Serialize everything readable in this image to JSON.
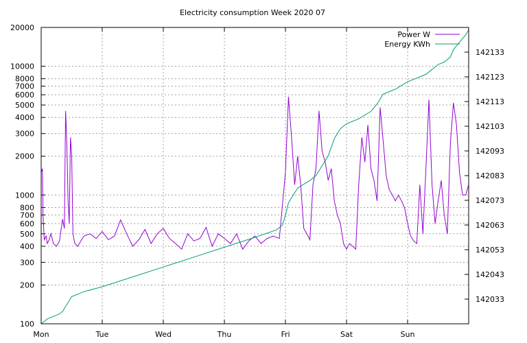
{
  "chart_data": {
    "type": "line",
    "title": "Electricity consumption Week 2020 07",
    "xlabel": "",
    "ylabel": "",
    "y2label": "",
    "grid": true,
    "legend_position": "top-right",
    "x_categories": [
      "Mon",
      "Tue",
      "Wed",
      "Thu",
      "Fri",
      "Sat",
      "Sun"
    ],
    "y_scale": "log",
    "ylim": [
      100,
      20000
    ],
    "y_ticks": [
      100,
      200,
      300,
      400,
      500,
      600,
      700,
      800,
      1000,
      2000,
      3000,
      4000,
      5000,
      6000,
      7000,
      8000,
      10000,
      20000
    ],
    "y2lim": [
      142023,
      142143
    ],
    "y2_ticks": [
      142033,
      142043,
      142053,
      142063,
      142073,
      142083,
      142093,
      142103,
      142113,
      142123,
      142133
    ],
    "series": [
      {
        "name": "Power W",
        "axis": "y",
        "color": "#9400d3",
        "points": [
          [
            0.0,
            1500
          ],
          [
            0.02,
            1600
          ],
          [
            0.03,
            700
          ],
          [
            0.05,
            450
          ],
          [
            0.08,
            480
          ],
          [
            0.1,
            420
          ],
          [
            0.13,
            450
          ],
          [
            0.16,
            500
          ],
          [
            0.2,
            420
          ],
          [
            0.25,
            400
          ],
          [
            0.3,
            440
          ],
          [
            0.35,
            650
          ],
          [
            0.38,
            550
          ],
          [
            0.4,
            4500
          ],
          [
            0.42,
            2500
          ],
          [
            0.44,
            900
          ],
          [
            0.46,
            600
          ],
          [
            0.48,
            2800
          ],
          [
            0.5,
            2000
          ],
          [
            0.52,
            500
          ],
          [
            0.55,
            420
          ],
          [
            0.6,
            400
          ],
          [
            0.65,
            440
          ],
          [
            0.7,
            480
          ],
          [
            0.8,
            500
          ],
          [
            0.9,
            460
          ],
          [
            1.0,
            520
          ],
          [
            1.1,
            450
          ],
          [
            1.2,
            480
          ],
          [
            1.3,
            640
          ],
          [
            1.4,
            500
          ],
          [
            1.5,
            400
          ],
          [
            1.6,
            450
          ],
          [
            1.7,
            540
          ],
          [
            1.8,
            420
          ],
          [
            1.9,
            500
          ],
          [
            2.0,
            550
          ],
          [
            2.1,
            460
          ],
          [
            2.2,
            420
          ],
          [
            2.3,
            380
          ],
          [
            2.4,
            500
          ],
          [
            2.5,
            440
          ],
          [
            2.6,
            460
          ],
          [
            2.7,
            560
          ],
          [
            2.8,
            400
          ],
          [
            2.9,
            500
          ],
          [
            3.0,
            460
          ],
          [
            3.1,
            420
          ],
          [
            3.2,
            500
          ],
          [
            3.3,
            380
          ],
          [
            3.4,
            440
          ],
          [
            3.5,
            480
          ],
          [
            3.6,
            420
          ],
          [
            3.7,
            460
          ],
          [
            3.8,
            480
          ],
          [
            3.9,
            460
          ],
          [
            4.0,
            1500
          ],
          [
            4.05,
            5800
          ],
          [
            4.1,
            2800
          ],
          [
            4.15,
            1200
          ],
          [
            4.2,
            2000
          ],
          [
            4.25,
            1200
          ],
          [
            4.3,
            550
          ],
          [
            4.35,
            500
          ],
          [
            4.4,
            450
          ],
          [
            4.45,
            1200
          ],
          [
            4.5,
            1600
          ],
          [
            4.55,
            4500
          ],
          [
            4.6,
            2200
          ],
          [
            4.65,
            1800
          ],
          [
            4.7,
            1300
          ],
          [
            4.75,
            1600
          ],
          [
            4.8,
            900
          ],
          [
            4.85,
            700
          ],
          [
            4.9,
            600
          ],
          [
            4.95,
            420
          ],
          [
            5.0,
            380
          ],
          [
            5.05,
            420
          ],
          [
            5.1,
            400
          ],
          [
            5.15,
            380
          ],
          [
            5.2,
            1200
          ],
          [
            5.25,
            2800
          ],
          [
            5.3,
            1800
          ],
          [
            5.35,
            3500
          ],
          [
            5.4,
            1600
          ],
          [
            5.45,
            1300
          ],
          [
            5.5,
            900
          ],
          [
            5.55,
            4800
          ],
          [
            5.6,
            2600
          ],
          [
            5.65,
            1400
          ],
          [
            5.7,
            1100
          ],
          [
            5.75,
            1000
          ],
          [
            5.8,
            900
          ],
          [
            5.85,
            1000
          ],
          [
            5.9,
            900
          ],
          [
            5.95,
            800
          ],
          [
            6.0,
            600
          ],
          [
            6.05,
            480
          ],
          [
            6.1,
            440
          ],
          [
            6.15,
            420
          ],
          [
            6.2,
            1200
          ],
          [
            6.25,
            500
          ],
          [
            6.3,
            1600
          ],
          [
            6.35,
            5500
          ],
          [
            6.4,
            1200
          ],
          [
            6.45,
            600
          ],
          [
            6.5,
            900
          ],
          [
            6.55,
            1300
          ],
          [
            6.6,
            700
          ],
          [
            6.65,
            500
          ],
          [
            6.7,
            2500
          ],
          [
            6.75,
            5200
          ],
          [
            6.8,
            3500
          ],
          [
            6.85,
            1500
          ],
          [
            6.9,
            1000
          ],
          [
            6.95,
            1000
          ],
          [
            7.0,
            1200
          ]
        ]
      },
      {
        "name": "Energy KWh",
        "axis": "y2",
        "color": "#009e73",
        "points": [
          [
            0.0,
            142023
          ],
          [
            0.1,
            142025
          ],
          [
            0.2,
            142026
          ],
          [
            0.3,
            142027
          ],
          [
            0.35,
            142028
          ],
          [
            0.4,
            142030
          ],
          [
            0.5,
            142034
          ],
          [
            0.7,
            142036
          ],
          [
            1.0,
            142038
          ],
          [
            1.5,
            142042
          ],
          [
            2.0,
            142046
          ],
          [
            2.5,
            142050
          ],
          [
            3.0,
            142054
          ],
          [
            3.5,
            142058
          ],
          [
            3.85,
            142061
          ],
          [
            3.95,
            142063
          ],
          [
            4.0,
            142067
          ],
          [
            4.05,
            142072
          ],
          [
            4.2,
            142078
          ],
          [
            4.4,
            142081
          ],
          [
            4.5,
            142083
          ],
          [
            4.6,
            142087
          ],
          [
            4.7,
            142091
          ],
          [
            4.8,
            142098
          ],
          [
            4.9,
            142102
          ],
          [
            5.0,
            142104
          ],
          [
            5.2,
            142106
          ],
          [
            5.4,
            142109
          ],
          [
            5.5,
            142112
          ],
          [
            5.6,
            142116
          ],
          [
            5.8,
            142118
          ],
          [
            6.0,
            142121
          ],
          [
            6.2,
            142123
          ],
          [
            6.3,
            142124
          ],
          [
            6.4,
            142126
          ],
          [
            6.5,
            142128
          ],
          [
            6.6,
            142129
          ],
          [
            6.7,
            142131
          ],
          [
            6.75,
            142134
          ],
          [
            6.85,
            142137
          ],
          [
            6.95,
            142140
          ],
          [
            7.0,
            142142
          ]
        ]
      }
    ]
  }
}
